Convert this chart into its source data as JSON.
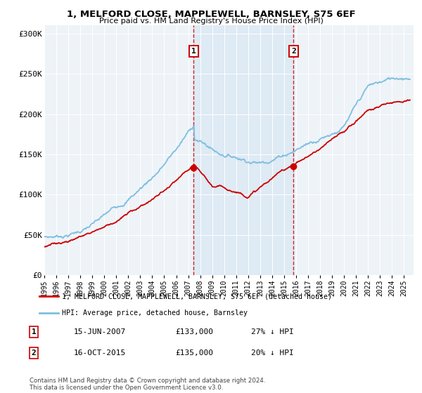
{
  "title_line1": "1, MELFORD CLOSE, MAPPLEWELL, BARNSLEY, S75 6EF",
  "title_line2": "Price paid vs. HM Land Registry's House Price Index (HPI)",
  "ylabel_ticks": [
    "£0",
    "£50K",
    "£100K",
    "£150K",
    "£200K",
    "£250K",
    "£300K"
  ],
  "ytick_vals": [
    0,
    50000,
    100000,
    150000,
    200000,
    250000,
    300000
  ],
  "ylim": [
    0,
    310000
  ],
  "xlim_start": 1995.0,
  "xlim_end": 2025.8,
  "purchase1_date": 2007.45,
  "purchase1_price": 133000,
  "purchase2_date": 2015.79,
  "purchase2_price": 135000,
  "hpi_color": "#7fbfdf",
  "price_color": "#cc0000",
  "shade_color": "#deeaf4",
  "legend_label1": "1, MELFORD CLOSE, MAPPLEWELL, BARNSLEY, S75 6EF (detached house)",
  "legend_label2": "HPI: Average price, detached house, Barnsley",
  "annotation1_label": "1",
  "annotation2_label": "2",
  "table_row1": [
    "1",
    "15-JUN-2007",
    "£133,000",
    "27% ↓ HPI"
  ],
  "table_row2": [
    "2",
    "16-OCT-2015",
    "£135,000",
    "20% ↓ HPI"
  ],
  "footer": "Contains HM Land Registry data © Crown copyright and database right 2024.\nThis data is licensed under the Open Government Licence v3.0.",
  "xtick_years": [
    1995,
    1996,
    1997,
    1998,
    1999,
    2000,
    2001,
    2002,
    2003,
    2004,
    2005,
    2006,
    2007,
    2008,
    2009,
    2010,
    2011,
    2012,
    2013,
    2014,
    2015,
    2016,
    2017,
    2018,
    2019,
    2020,
    2021,
    2022,
    2023,
    2024,
    2025
  ],
  "chart_bg": "#eef3f8"
}
